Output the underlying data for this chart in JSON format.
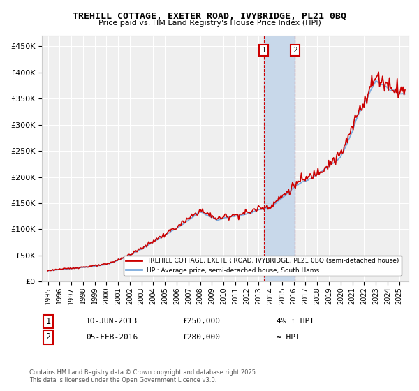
{
  "title": "TREHILL COTTAGE, EXETER ROAD, IVYBRIDGE, PL21 0BQ",
  "subtitle": "Price paid vs. HM Land Registry's House Price Index (HPI)",
  "legend_line1": "TREHILL COTTAGE, EXETER ROAD, IVYBRIDGE, PL21 0BQ (semi-detached house)",
  "legend_line2": "HPI: Average price, semi-detached house, South Hams",
  "annotation1_date": "10-JUN-2013",
  "annotation1_price": "£250,000",
  "annotation1_hpi": "4% ↑ HPI",
  "annotation2_date": "05-FEB-2016",
  "annotation2_price": "£280,000",
  "annotation2_hpi": "≈ HPI",
  "sale1_year": 2013.44,
  "sale1_value": 250000,
  "sale2_year": 2016.09,
  "sale2_value": 280000,
  "yticks": [
    0,
    50000,
    100000,
    150000,
    200000,
    250000,
    300000,
    350000,
    400000,
    450000
  ],
  "ylim": [
    0,
    470000
  ],
  "xlim_start": 1994.5,
  "xlim_end": 2025.8,
  "background_color": "#ffffff",
  "plot_bg_color": "#efefef",
  "grid_color": "#ffffff",
  "hpi_color": "#7aaadd",
  "price_color": "#cc0000",
  "shade_color": "#c8d8ea",
  "vline_color": "#cc0000",
  "footnote": "Contains HM Land Registry data © Crown copyright and database right 2025.\nThis data is licensed under the Open Government Licence v3.0."
}
